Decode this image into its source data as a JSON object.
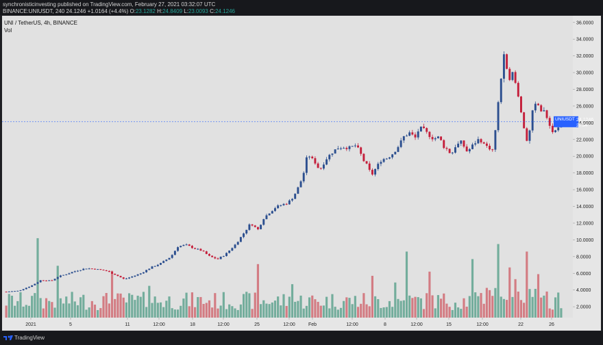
{
  "header": {
    "author": "synchronisticinvesting",
    "published_text": "published on TradingView.com, February 27, 2021 03:32:07 UTC",
    "symbol_line": "BINANCE:UNIUSDT, 240",
    "last": "24.1246",
    "change": "+1.0164 (+4.4%)",
    "o_label": "O:",
    "o_value": "23.1282",
    "h_label": "H:",
    "h_value": "24.8409",
    "l_label": "L:",
    "l_value": "23.0093",
    "c_label": "C:",
    "c_value": "24.1246"
  },
  "legend": {
    "title": "UNI / TetherUS, 4h, BINANCE",
    "vol": "Vol"
  },
  "footer": {
    "brand": "TradingView"
  },
  "colors": {
    "plot_bg": "#e1e1e1",
    "up": "#2c4f8f",
    "down": "#c41f3b",
    "vol_up": "#5fa38f",
    "vol_down": "#d06a72",
    "price_tag": "#2962ff",
    "axis_text": "#222222"
  },
  "chart_data": {
    "type": "candlestick",
    "title": "UNI / TetherUS, 4h, BINANCE",
    "y_axis_ticks": [
      "36.0000",
      "34.0000",
      "32.0000",
      "30.0000",
      "28.0000",
      "26.0000",
      "24.0000",
      "22.0000",
      "20.0000",
      "18.0000",
      "16.0000",
      "14.0000",
      "12.0000",
      "10.0000",
      "8.0000",
      "6.0000",
      "4.0000",
      "2.0000"
    ],
    "ylim": [
      0.7,
      36.8
    ],
    "x_tick_labels": [
      "2021",
      "5",
      "11",
      "12:00",
      "18",
      "12:00",
      "25",
      "12:00",
      "Feb",
      "12:00",
      "8",
      "12:00",
      "15",
      "12:00",
      "22",
      "26"
    ],
    "last_price_label": "UNIUSDT",
    "last_price": "24.1246",
    "countdown": "27:54",
    "price_path_anchors": [
      [
        0,
        3.8
      ],
      [
        12,
        3.9
      ],
      [
        25,
        4.5
      ],
      [
        35,
        5.2
      ],
      [
        45,
        5.1
      ],
      [
        52,
        5.6
      ],
      [
        60,
        5.9
      ],
      [
        70,
        6.3
      ],
      [
        80,
        6.6
      ],
      [
        90,
        6.5
      ],
      [
        100,
        6.3
      ],
      [
        110,
        5.8
      ],
      [
        118,
        5.3
      ],
      [
        126,
        5.6
      ],
      [
        135,
        6.0
      ],
      [
        145,
        6.7
      ],
      [
        155,
        7.2
      ],
      [
        165,
        8.0
      ],
      [
        172,
        9.2
      ],
      [
        180,
        9.4
      ],
      [
        188,
        9.0
      ],
      [
        196,
        8.7
      ],
      [
        204,
        8.0
      ],
      [
        212,
        7.7
      ],
      [
        220,
        8.3
      ],
      [
        230,
        9.5
      ],
      [
        238,
        10.8
      ],
      [
        245,
        12.0
      ],
      [
        252,
        11.2
      ],
      [
        258,
        12.6
      ],
      [
        264,
        13.3
      ],
      [
        270,
        13.9
      ],
      [
        276,
        14.2
      ],
      [
        282,
        14.4
      ],
      [
        288,
        15.2
      ],
      [
        294,
        16.6
      ],
      [
        298,
        18.0
      ],
      [
        302,
        20.3
      ],
      [
        306,
        19.7
      ],
      [
        310,
        19.2
      ],
      [
        314,
        18.3
      ],
      [
        320,
        19.6
      ],
      [
        326,
        20.4
      ],
      [
        332,
        21.0
      ],
      [
        338,
        21.1
      ],
      [
        344,
        21.0
      ],
      [
        350,
        21.3
      ],
      [
        354,
        20.6
      ],
      [
        358,
        19.5
      ],
      [
        362,
        18.8
      ],
      [
        366,
        17.7
      ],
      [
        370,
        18.5
      ],
      [
        376,
        19.6
      ],
      [
        382,
        19.8
      ],
      [
        388,
        20.4
      ],
      [
        394,
        21.4
      ],
      [
        398,
        22.3
      ],
      [
        404,
        22.8
      ],
      [
        410,
        22.2
      ],
      [
        414,
        23.4
      ],
      [
        418,
        23.2
      ],
      [
        422,
        22.7
      ],
      [
        428,
        22.1
      ],
      [
        434,
        22.3
      ],
      [
        438,
        21.2
      ],
      [
        442,
        20.8
      ],
      [
        446,
        20.2
      ],
      [
        450,
        21.2
      ],
      [
        456,
        21.7
      ],
      [
        462,
        20.5
      ],
      [
        468,
        21.4
      ],
      [
        474,
        22.1
      ],
      [
        480,
        21.3
      ],
      [
        484,
        21.0
      ],
      [
        488,
        20.7
      ],
      [
        492,
        25.3
      ],
      [
        496,
        29.5
      ],
      [
        499,
        32.2
      ],
      [
        502,
        29.8
      ],
      [
        505,
        29.3
      ],
      [
        508,
        30.1
      ],
      [
        511,
        28.2
      ],
      [
        514,
        26.4
      ],
      [
        518,
        23.9
      ],
      [
        521,
        21.4
      ],
      [
        524,
        22.6
      ],
      [
        528,
        25.8
      ],
      [
        532,
        26.3
      ],
      [
        536,
        25.5
      ],
      [
        540,
        25.2
      ],
      [
        544,
        24.0
      ],
      [
        547,
        22.8
      ],
      [
        550,
        23.0
      ],
      [
        553,
        23.6
      ],
      [
        556,
        24.1
      ]
    ],
    "volume_profile": "spiky; tallest bars near 2021 start (~9.5), mid-Feb peaks near 22 Feb (~8.5)"
  }
}
